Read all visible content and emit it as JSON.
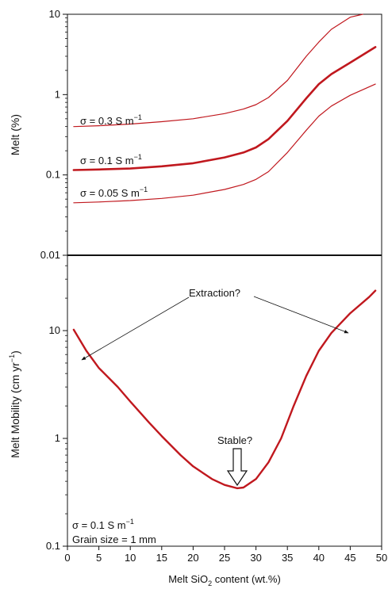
{
  "chart_data": [
    {
      "type": "line",
      "panel": "top",
      "ylabel": "Melt (%)",
      "yscale": "log",
      "ylim": [
        0.01,
        10
      ],
      "xlim": [
        0,
        50
      ],
      "yticks": [
        "10",
        "1",
        "0.1",
        "0.01"
      ],
      "series": [
        {
          "label_main": "σ = 0.3 S m",
          "label_sup": "−1",
          "color": "#c0181e",
          "x": [
            1,
            5,
            10,
            15,
            20,
            25,
            28,
            30,
            32,
            35,
            38,
            40,
            42,
            45,
            47
          ],
          "y": [
            0.4,
            0.41,
            0.43,
            0.46,
            0.5,
            0.58,
            0.66,
            0.75,
            0.92,
            1.5,
            3.0,
            4.5,
            6.5,
            9.2,
            10.5
          ]
        },
        {
          "label_main": "σ = 0.1 S m",
          "label_sup": "−1",
          "color": "#c0181e",
          "bold": true,
          "x": [
            1,
            5,
            10,
            15,
            20,
            25,
            28,
            30,
            32,
            35,
            38,
            40,
            42,
            45,
            49
          ],
          "y": [
            0.115,
            0.117,
            0.12,
            0.128,
            0.14,
            0.165,
            0.19,
            0.22,
            0.28,
            0.47,
            0.9,
            1.35,
            1.8,
            2.5,
            3.9
          ]
        },
        {
          "label_main": "σ = 0.05 S m",
          "label_sup": "−1",
          "color": "#c0181e",
          "x": [
            1,
            5,
            10,
            15,
            20,
            25,
            28,
            30,
            32,
            35,
            38,
            40,
            42,
            45,
            49
          ],
          "y": [
            0.045,
            0.046,
            0.048,
            0.051,
            0.056,
            0.066,
            0.076,
            0.088,
            0.11,
            0.19,
            0.36,
            0.54,
            0.72,
            0.98,
            1.35
          ]
        }
      ]
    },
    {
      "type": "line",
      "panel": "bottom",
      "ylabel_main": "Melt Mobility (cm yr",
      "ylabel_sup": "−1",
      "ylabel_close": ")",
      "yscale": "log",
      "ylim": [
        0.1,
        50
      ],
      "xlim": [
        0,
        50
      ],
      "yticks": [
        "10",
        "1",
        "0.1"
      ],
      "xticks": [
        "0",
        "5",
        "10",
        "15",
        "20",
        "25",
        "30",
        "35",
        "40",
        "45",
        "50"
      ],
      "xlabel_main": "Melt SiO",
      "xlabel_sub": "2",
      "xlabel_rest": " content (wt.%)",
      "series": [
        {
          "color": "#c0181e",
          "x": [
            1,
            3,
            5,
            8,
            10,
            13,
            15,
            18,
            20,
            23,
            25,
            27,
            28,
            30,
            32,
            34,
            36,
            38,
            40,
            42,
            45,
            48,
            49
          ],
          "y": [
            10.2,
            6.5,
            4.5,
            3.0,
            2.2,
            1.4,
            1.05,
            0.7,
            0.55,
            0.42,
            0.37,
            0.345,
            0.35,
            0.42,
            0.6,
            1.0,
            2.0,
            3.8,
            6.5,
            9.5,
            14.5,
            20.5,
            23.5
          ]
        }
      ],
      "annotations": {
        "extraction": "Extraction?",
        "stable": "Stable?",
        "sigma_main": "σ = 0.1 S m",
        "sigma_sup": "−1",
        "grain_size": "Grain size = 1 mm"
      }
    }
  ]
}
